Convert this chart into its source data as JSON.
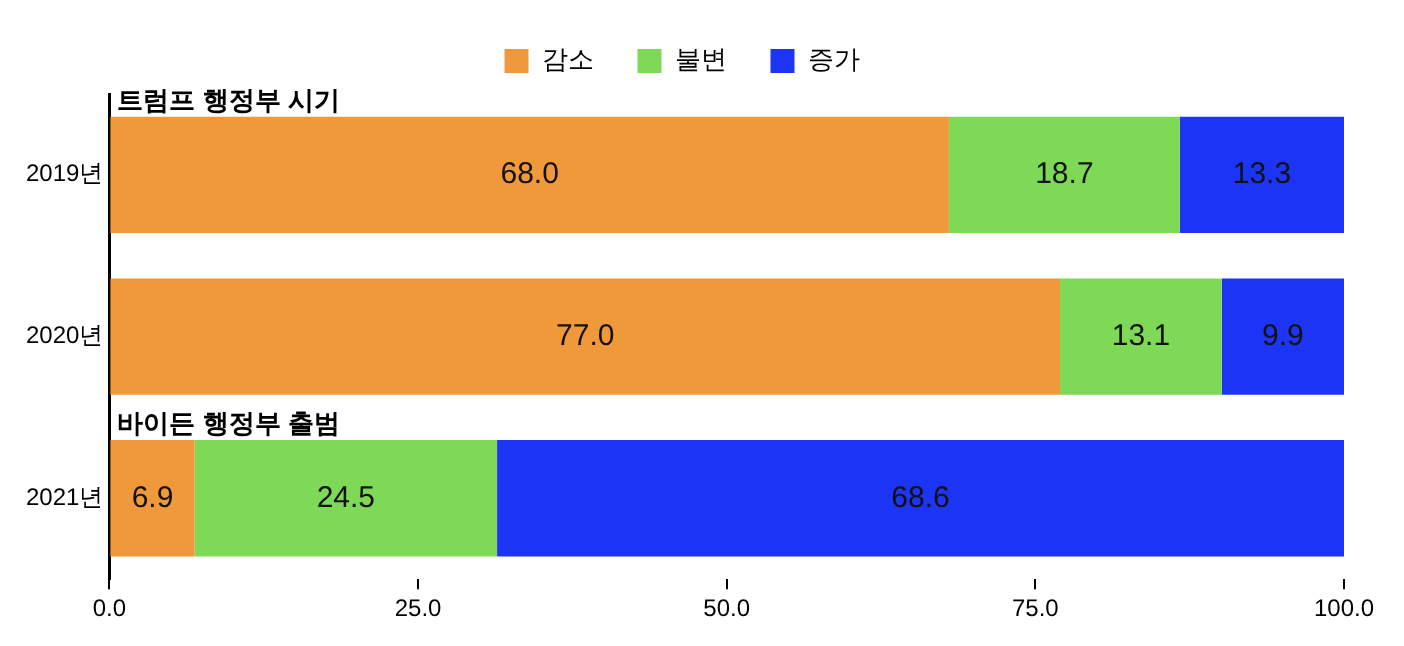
{
  "chart_data": {
    "type": "bar",
    "orientation": "horizontal",
    "stacked": true,
    "categories": [
      "2019년",
      "2020년",
      "2021년"
    ],
    "series": [
      {
        "name": "감소",
        "color": "#f0993a",
        "values": [
          68.0,
          77.0,
          6.9
        ],
        "value_labels": [
          "68.0",
          "77.0",
          "6.9"
        ]
      },
      {
        "name": "불변",
        "color": "#7ed957",
        "values": [
          18.7,
          13.1,
          24.5
        ],
        "value_labels": [
          "18.7",
          "13.1",
          "24.5"
        ]
      },
      {
        "name": "증가",
        "color": "#1c35f5",
        "values": [
          13.3,
          9.9,
          68.6
        ],
        "value_labels": [
          "13.3",
          "9.9",
          "68.6"
        ]
      }
    ],
    "xlim": [
      0,
      100
    ],
    "xticks": [
      {
        "value": 0,
        "label": "0.0"
      },
      {
        "value": 25,
        "label": "25.0"
      },
      {
        "value": 50,
        "label": "50.0"
      },
      {
        "value": 75,
        "label": "75.0"
      },
      {
        "value": 100,
        "label": "100.0"
      }
    ],
    "grid": false,
    "legend": "top",
    "annotations": [
      {
        "text": "트럼프 행정부 시기",
        "x": 0,
        "y": "2019년"
      },
      {
        "text": "바이든 행정부 출범",
        "x": 0,
        "y": "2021년"
      }
    ]
  }
}
